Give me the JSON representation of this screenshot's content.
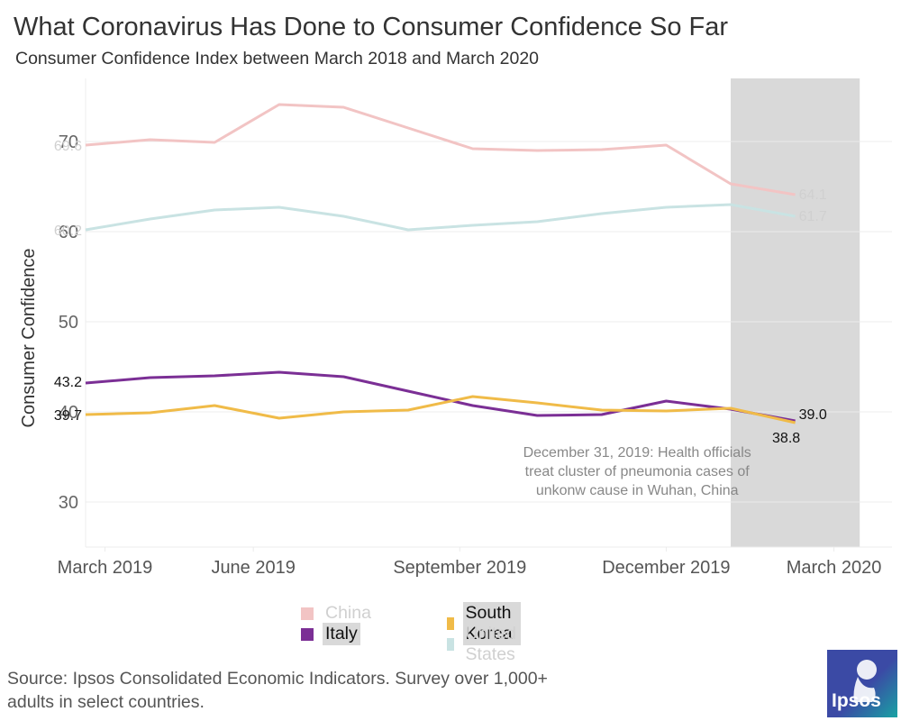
{
  "header": {
    "title": "What Coronavirus Has Done to Consumer Confidence So Far",
    "subtitle": "Consumer Confidence Index between March 2018 and March 2020"
  },
  "source_note": "Source: Ipsos Consolidated Economic Indicators. Survey over 1,000+ adults in select countries.",
  "logo": {
    "text": "Ipsos",
    "color_top": "#3b4aa5",
    "color_bottom": "#18a3a3"
  },
  "legend": [
    {
      "name": "China",
      "color": "#f2c4c4",
      "state": "inactive"
    },
    {
      "name": "South Korea",
      "color": "#f0bb48",
      "state": "active"
    },
    {
      "name": "Italy",
      "color": "#7b2f95",
      "state": "active"
    },
    {
      "name": "United States",
      "color": "#c9e3e3",
      "state": "inactive"
    }
  ],
  "chart_data": {
    "type": "line",
    "title": "What Coronavirus Has Done to Consumer Confidence So Far",
    "subtitle": "Consumer Confidence Index between March 2018 and March 2020",
    "xlabel": "",
    "ylabel": "Consumer Confidence",
    "ylim": [
      25,
      77
    ],
    "yticks": [
      30,
      40,
      50,
      60,
      70
    ],
    "xlim": [
      0,
      12.5
    ],
    "xtick_positions": [
      0.3,
      2.6,
      5.8,
      9.0,
      11.6
    ],
    "xtick_labels": [
      "March 2019",
      "June 2019",
      "September 2019",
      "December 2019",
      "March 2020"
    ],
    "grid": true,
    "shaded_region": {
      "x_start": 10.0,
      "x_end": 12.0,
      "color": "#d9d9d9"
    },
    "annotation": {
      "lines": [
        "December 31, 2019: Health officials",
        "treat cluster of pneumonia cases of",
        "unkonw cause in Wuhan, China"
      ],
      "x": 8.55,
      "y": 32.4
    },
    "x": [
      0,
      1,
      2,
      3,
      4,
      5,
      6,
      7,
      8,
      9,
      10,
      11,
      12
    ],
    "series": [
      {
        "name": "China",
        "color": "#f2c4c4",
        "start_label": "69.6",
        "end_label": "64.1",
        "values": [
          69.6,
          70.2,
          69.9,
          74.1,
          73.8,
          71.5,
          69.2,
          69.0,
          69.1,
          69.6,
          65.3,
          64.1,
          null
        ]
      },
      {
        "name": "United States",
        "color": "#c9e3e3",
        "start_label": "60.2",
        "end_label": "61.7",
        "values": [
          60.2,
          61.4,
          62.4,
          62.7,
          61.7,
          60.2,
          60.7,
          61.1,
          62.0,
          62.7,
          63.0,
          61.7,
          null
        ]
      },
      {
        "name": "Italy",
        "color": "#7b2f95",
        "start_label": "43.2",
        "end_label": "39.0",
        "values": [
          43.2,
          43.8,
          44.0,
          44.4,
          43.9,
          42.3,
          40.7,
          39.6,
          39.7,
          41.2,
          40.3,
          39.0,
          null
        ]
      },
      {
        "name": "South Korea",
        "color": "#f0bb48",
        "start_label": "39.7",
        "end_label": "38.8",
        "values": [
          39.7,
          39.9,
          40.7,
          39.3,
          40.0,
          40.2,
          41.7,
          41.0,
          40.2,
          40.1,
          40.4,
          38.8,
          null
        ]
      }
    ]
  }
}
